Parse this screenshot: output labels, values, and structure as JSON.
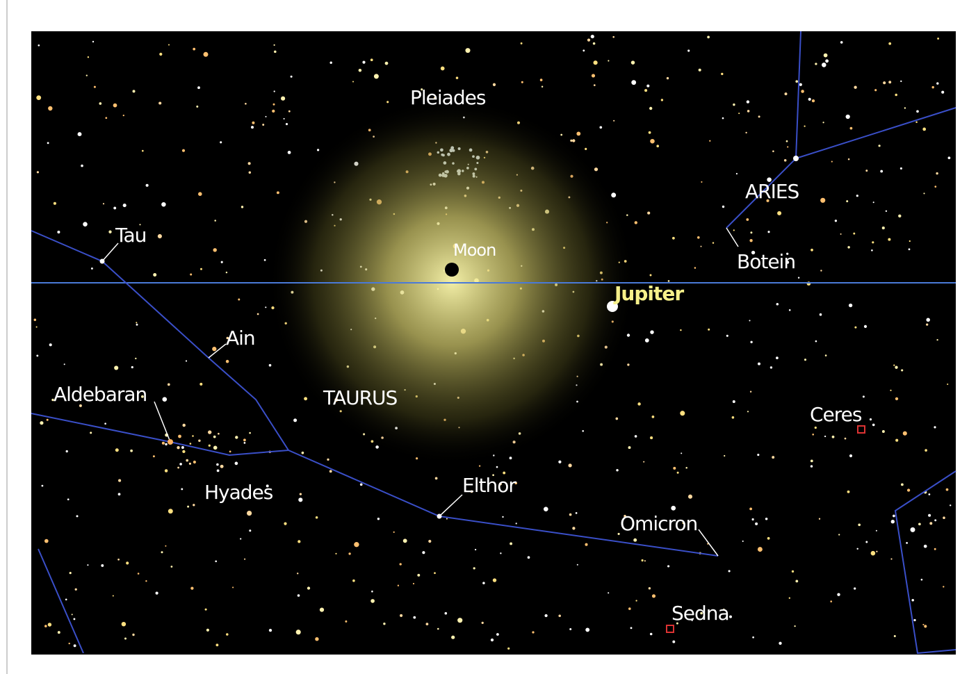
{
  "objects": [
    {
      "label": "Pleiades"
    },
    {
      "label": "Moon"
    },
    {
      "label": "ARIES"
    },
    {
      "label": "Tau"
    },
    {
      "label": "Botein"
    },
    {
      "label": "Jupiter"
    },
    {
      "label": "Ain"
    },
    {
      "label": "Aldebaran"
    },
    {
      "label": "TAURUS"
    },
    {
      "label": "Ceres"
    },
    {
      "label": "Hyades"
    },
    {
      "label": "Elthor"
    },
    {
      "label": "Omicron"
    },
    {
      "label": "Sedna"
    }
  ]
}
